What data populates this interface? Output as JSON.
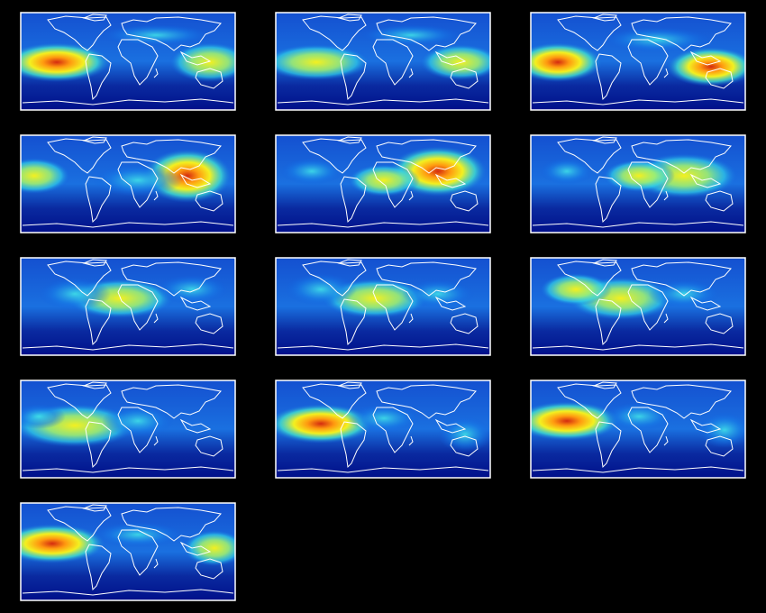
{
  "panels": [
    {},
    {},
    {},
    {},
    {},
    {},
    {},
    {},
    {},
    {},
    {},
    {},
    {}
  ]
}
